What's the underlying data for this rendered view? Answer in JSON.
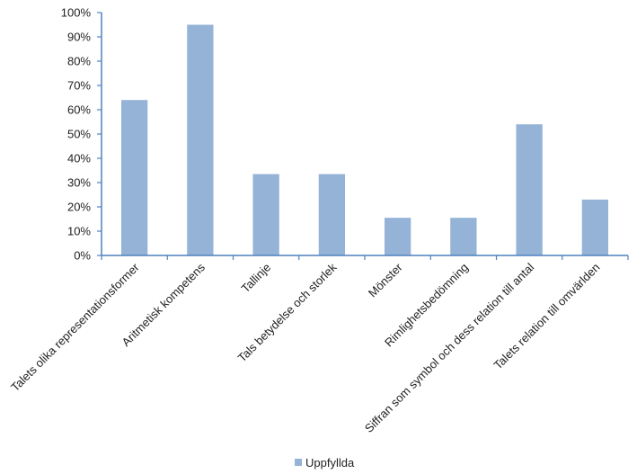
{
  "chart_data": {
    "type": "bar",
    "categories": [
      "Talets olika representationsformer",
      "Aritmetisk kompetens",
      "Tallinje",
      "Tals betydelse och storlek",
      "Mönster",
      "Rimlighetsbedömning",
      "Siffran som symbol och dess relation till antal",
      "Talets relation till omvärlden"
    ],
    "series": [
      {
        "name": "Uppfyllda",
        "values": [
          64,
          95,
          33.5,
          33.5,
          15.5,
          15.5,
          54,
          23
        ]
      }
    ],
    "ylim": [
      0,
      100
    ],
    "yticks": [
      "0%",
      "10%",
      "20%",
      "30%",
      "40%",
      "50%",
      "60%",
      "70%",
      "80%",
      "90%",
      "100%"
    ],
    "grid": false,
    "legend_position": "bottom",
    "colors": {
      "bar": "#95b3d7",
      "axis": "#4f81bd"
    }
  }
}
